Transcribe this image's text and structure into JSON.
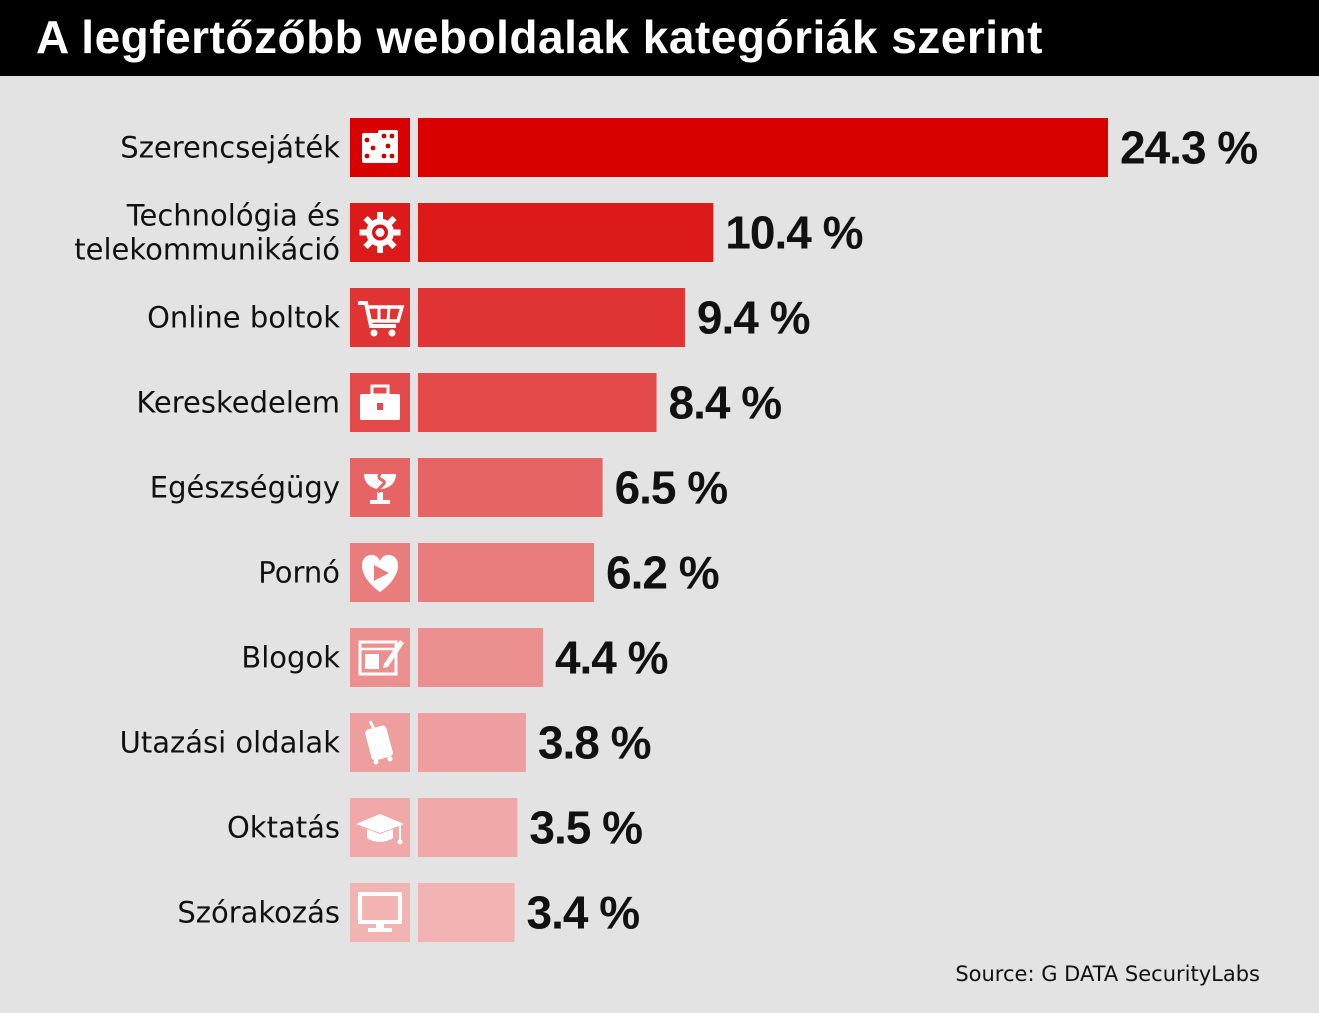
{
  "title": "A legfertőzőbb weboldalak kategóriák szerint",
  "source": "Source: G DATA SecurityLabs",
  "chart_data": {
    "type": "bar",
    "orientation": "horizontal",
    "title": "A legfertőzőbb weboldalak kategóriák szerint",
    "unit": "%",
    "value_suffix": " %",
    "categories": [
      {
        "label_lines": [
          "Szerencsejáték"
        ],
        "icon": "dice-icon",
        "value": 24.3,
        "color": "#d90000"
      },
      {
        "label_lines": [
          "Technológia és",
          "telekommunikáció"
        ],
        "icon": "gear-icon",
        "value": 10.4,
        "color": "#dd1a1a"
      },
      {
        "label_lines": [
          "Online boltok"
        ],
        "icon": "shopping-cart-icon",
        "value": 9.4,
        "color": "#e03333"
      },
      {
        "label_lines": [
          "Kereskedelem"
        ],
        "icon": "briefcase-icon",
        "value": 8.4,
        "color": "#e34b4b"
      },
      {
        "label_lines": [
          "Egészségügy"
        ],
        "icon": "medical-caduceus-icon",
        "value": 6.5,
        "color": "#e66464"
      },
      {
        "label_lines": [
          "Pornó"
        ],
        "icon": "heart-play-icon",
        "value": 6.2,
        "color": "#e97d7d"
      },
      {
        "label_lines": [
          "Blogok"
        ],
        "icon": "blog-edit-icon",
        "value": 4.4,
        "color": "#eb8f8f"
      },
      {
        "label_lines": [
          "Utazási oldalak"
        ],
        "icon": "suitcase-icon",
        "value": 3.8,
        "color": "#ee9e9e"
      },
      {
        "label_lines": [
          "Oktatás"
        ],
        "icon": "graduation-cap-icon",
        "value": 3.5,
        "color": "#f0a8a8"
      },
      {
        "label_lines": [
          "Szórakozás"
        ],
        "icon": "monitor-icon",
        "value": 3.4,
        "color": "#f2b3b3"
      }
    ],
    "xlim": [
      0,
      24.3
    ],
    "grid": false,
    "legend": "none"
  }
}
